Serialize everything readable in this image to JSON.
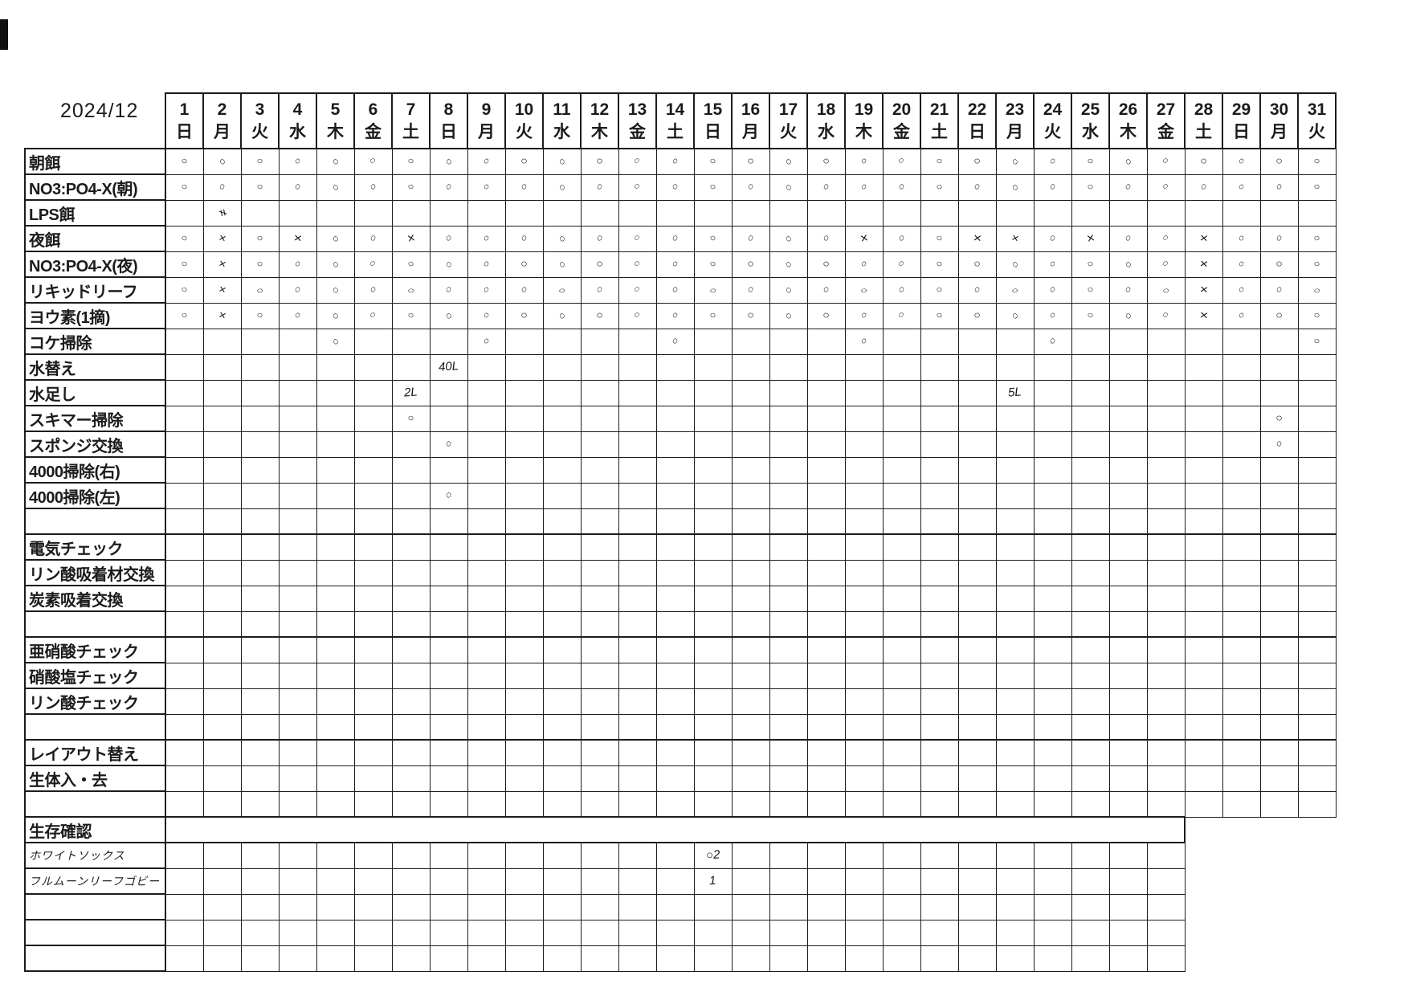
{
  "title": "2024/12",
  "header": {
    "day_numbers": [
      "1",
      "2",
      "3",
      "4",
      "5",
      "6",
      "7",
      "8",
      "9",
      "10",
      "11",
      "12",
      "13",
      "14",
      "15",
      "16",
      "17",
      "18",
      "19",
      "20",
      "21",
      "22",
      "23",
      "24",
      "25",
      "26",
      "27",
      "28",
      "29",
      "30",
      "31"
    ],
    "day_weekdays": [
      "日",
      "月",
      "火",
      "水",
      "木",
      "金",
      "土",
      "日",
      "月",
      "火",
      "水",
      "木",
      "金",
      "土",
      "日",
      "月",
      "火",
      "水",
      "木",
      "金",
      "土",
      "日",
      "月",
      "火",
      "水",
      "木",
      "金",
      "土",
      "日",
      "月",
      "火"
    ]
  },
  "glyphs": {
    "circle": "○",
    "cross": "×"
  },
  "rows": [
    {
      "label": "朝餌",
      "circles": [
        1,
        2,
        3,
        4,
        5,
        6,
        7,
        8,
        9,
        10,
        11,
        12,
        13,
        14,
        15,
        16,
        17,
        18,
        19,
        20,
        21,
        22,
        23,
        24,
        25,
        26,
        27,
        28,
        29,
        30,
        31
      ]
    },
    {
      "label": "NO3:PO4-X(朝)",
      "circles": [
        1,
        2,
        3,
        4,
        5,
        6,
        7,
        8,
        9,
        10,
        11,
        12,
        13,
        14,
        15,
        16,
        17,
        18,
        19,
        20,
        21,
        22,
        23,
        24,
        25,
        26,
        27,
        28,
        29,
        30,
        31
      ]
    },
    {
      "label": "LPS餌",
      "lps": true,
      "texts": {
        "2": "≠"
      }
    },
    {
      "label": "夜餌",
      "circles": [
        1,
        3,
        5,
        6,
        8,
        9,
        10,
        11,
        12,
        13,
        14,
        15,
        16,
        17,
        18,
        20,
        21,
        24,
        26,
        27,
        29,
        30,
        31
      ],
      "crosses": [
        2,
        4,
        7,
        19,
        22,
        23,
        25,
        28
      ]
    },
    {
      "label": "NO3:PO4-X(夜)",
      "circles": [
        1,
        3,
        4,
        5,
        6,
        7,
        8,
        9,
        10,
        11,
        12,
        13,
        14,
        15,
        16,
        17,
        18,
        19,
        20,
        21,
        22,
        23,
        24,
        25,
        26,
        27,
        29,
        30,
        31
      ],
      "crosses": [
        2,
        28
      ]
    },
    {
      "label": "リキッドリーフ",
      "circles": [
        1,
        3,
        4,
        5,
        6,
        7,
        8,
        9,
        10,
        11,
        12,
        13,
        14,
        15,
        16,
        17,
        18,
        19,
        20,
        21,
        22,
        23,
        24,
        25,
        26,
        27,
        29,
        30,
        31
      ],
      "crosses": [
        2,
        28
      ]
    },
    {
      "label": "ヨウ素(1摘)",
      "circles": [
        1,
        3,
        4,
        5,
        6,
        7,
        8,
        9,
        10,
        11,
        12,
        13,
        14,
        15,
        16,
        17,
        18,
        19,
        20,
        21,
        22,
        23,
        24,
        25,
        26,
        27,
        29,
        30,
        31
      ],
      "crosses": [
        2,
        28
      ]
    },
    {
      "label": "コケ掃除",
      "circles": [
        5,
        9,
        14,
        19,
        24,
        31
      ]
    },
    {
      "label": "水替え",
      "texts": {
        "8": "40L"
      }
    },
    {
      "label": "水足し",
      "texts": {
        "7": "2L",
        "23": "5L"
      }
    },
    {
      "label": "スキマー掃除",
      "circles": [
        7,
        30
      ]
    },
    {
      "label": "スポンジ交換",
      "circles": [
        8,
        30
      ]
    },
    {
      "label": "4000掃除(右)"
    },
    {
      "label": "4000掃除(左)",
      "circles": [
        8
      ]
    },
    {
      "label": ""
    },
    {
      "label": "電気チェック",
      "sect": true
    },
    {
      "label": "リン酸吸着材交換"
    },
    {
      "label": "炭素吸着交換"
    },
    {
      "label": ""
    },
    {
      "label": "亜硝酸チェック",
      "sect": true
    },
    {
      "label": "硝酸塩チェック"
    },
    {
      "label": "リン酸チェック"
    },
    {
      "label": ""
    },
    {
      "label": "レイアウト替え",
      "sect": true
    },
    {
      "label": "生体入・去"
    },
    {
      "label": ""
    },
    {
      "label": "生存確認",
      "merged": true,
      "span": 27,
      "sect": true
    },
    {
      "label": "ホワイトソックス",
      "handwritten": true,
      "span": 27,
      "texts": {
        "15": "○2"
      }
    },
    {
      "label": "フルムーンリーフゴビー",
      "handwritten": true,
      "span": 27,
      "texts": {
        "15": "1"
      }
    },
    {
      "label": "",
      "span": 27
    },
    {
      "label": "",
      "span": 27
    },
    {
      "label": "",
      "span": 27
    }
  ]
}
